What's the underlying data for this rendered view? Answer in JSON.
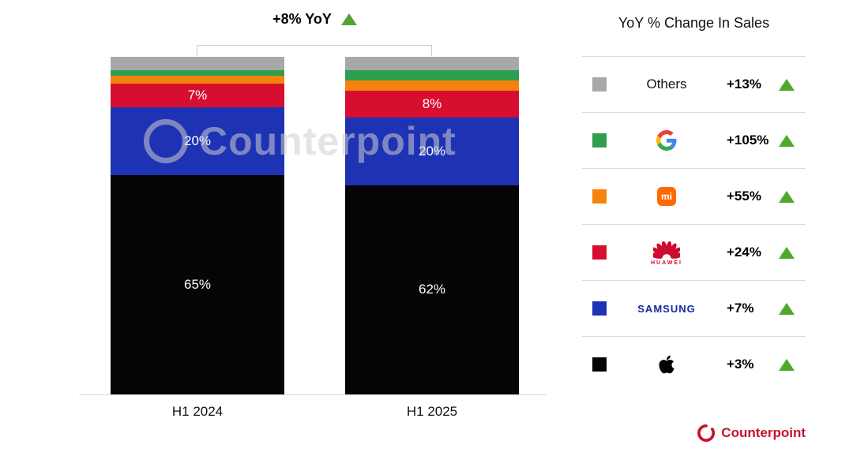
{
  "annotation": {
    "label": "+8% YoY",
    "trend": "up"
  },
  "chart_data": {
    "type": "bar",
    "stacked": true,
    "stack_order": "top-to-bottom",
    "title": "+8% YoY",
    "categories": [
      "H1 2024",
      "H1 2025"
    ],
    "series": [
      {
        "name": "Others",
        "color": "#a8a8a8",
        "values": [
          4,
          4
        ],
        "labels": [
          "",
          ""
        ]
      },
      {
        "name": "Google",
        "color": "#2e9e4f",
        "values": [
          1.5,
          3
        ],
        "labels": [
          "",
          ""
        ]
      },
      {
        "name": "Xiaomi",
        "color": "#f5830d",
        "values": [
          2.5,
          3
        ],
        "labels": [
          "",
          ""
        ]
      },
      {
        "name": "Huawei",
        "color": "#d60f31",
        "values": [
          7,
          8
        ],
        "labels": [
          "7%",
          "8%"
        ]
      },
      {
        "name": "Samsung",
        "color": "#1e32b4",
        "values": [
          20,
          20
        ],
        "labels": [
          "20%",
          "20%"
        ]
      },
      {
        "name": "Apple",
        "color": "#050505",
        "values": [
          65,
          62
        ],
        "labels": [
          "65%",
          "62%"
        ]
      }
    ],
    "ylim": [
      0,
      100
    ],
    "unit": "%",
    "grid": false,
    "legend_position": "right"
  },
  "legend": {
    "title": "YoY % Change In Sales",
    "items": [
      {
        "brand": "Others",
        "label": "Others",
        "change": "+13%",
        "color": "#a8a8a8",
        "trend": "up"
      },
      {
        "brand": "Google",
        "change": "+105%",
        "color": "#2e9e4f",
        "trend": "up"
      },
      {
        "brand": "Xiaomi",
        "logo_text": "mi",
        "change": "+55%",
        "color": "#f5830d",
        "trend": "up"
      },
      {
        "brand": "Huawei",
        "label": "HUAWEI",
        "change": "+24%",
        "color": "#d60f31",
        "trend": "up"
      },
      {
        "brand": "Samsung",
        "label": "SAMSUNG",
        "change": "+7%",
        "color": "#1e32b4",
        "trend": "up"
      },
      {
        "brand": "Apple",
        "change": "+3%",
        "color": "#050505",
        "trend": "up"
      }
    ]
  },
  "colors": {
    "positive": "#4ea72e",
    "brand_red": "#c8102e"
  },
  "watermark": "Counterpoint",
  "footer": {
    "brand": "Counterpoint"
  }
}
